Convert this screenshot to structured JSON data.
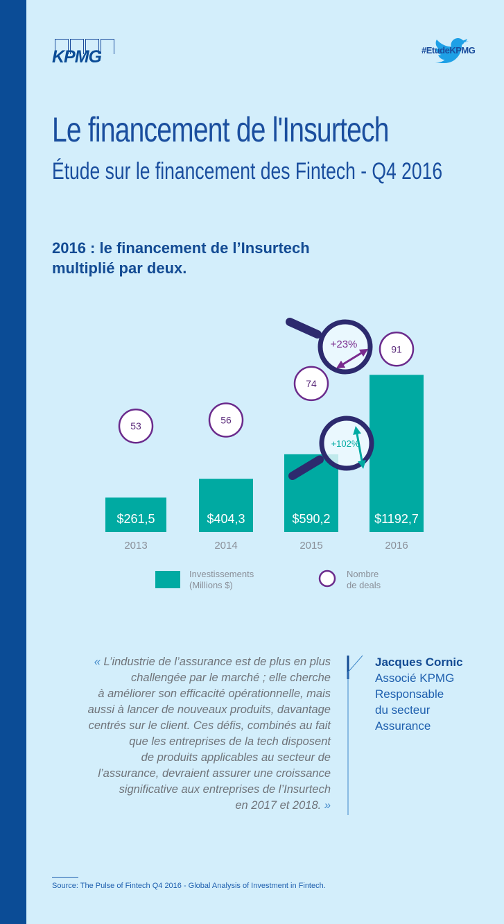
{
  "brand": {
    "logo": "KPMG",
    "hashtag": "#EtudeKPMG",
    "twitter_icon": "twitter-bird-icon"
  },
  "header": {
    "title": "Le financement de l'Insurtech",
    "subtitle": "Étude sur le financement des Fintech - Q4 2016"
  },
  "headline": {
    "line1": "2016 : le financement de l’Insurtech",
    "line2": "multiplié par deux."
  },
  "colors": {
    "strip": "#0b4c96",
    "background": "#d3eefb",
    "bar": "#00aaa2",
    "deal_circle": "#6b2b8c",
    "magnifier": "#2d2a6e"
  },
  "chart_data": {
    "type": "bar",
    "categories": [
      "2013",
      "2014",
      "2015",
      "2016"
    ],
    "series": [
      {
        "name": "Investissements (Millions $)",
        "values": [
          261.5,
          404.3,
          590.2,
          1192.7
        ],
        "labels": [
          "$261,5",
          "$404,3",
          "$590,2",
          "$1192,7"
        ]
      },
      {
        "name": "Nombre de deals",
        "values": [
          53,
          56,
          74,
          91
        ],
        "labels": [
          "53",
          "56",
          "74",
          "91"
        ]
      }
    ],
    "annotations": [
      {
        "text": "+23%",
        "between": [
          "2015",
          "2016"
        ],
        "series": "Nombre de deals"
      },
      {
        "text": "+102%",
        "between": [
          "2015",
          "2016"
        ],
        "series": "Investissements (Millions $)"
      }
    ],
    "legend": {
      "bar_line1": "Investissements",
      "bar_line2": "(Millions $)",
      "circle_line1": "Nombre",
      "circle_line2": "de deals",
      "placement": "bottom"
    }
  },
  "quote": {
    "lines": [
      "« L’industrie de l’assurance est de plus en plus",
      "challengée par le marché ; elle cherche",
      "à améliorer son efficacité opérationnelle, mais",
      "aussi à lancer de nouveaux produits, davantage",
      "centrés sur le client. Ces défis, combinés au fait",
      "que les entreprises de la tech disposent",
      "de produits applicables au secteur de",
      "l’assurance, devraient assurer une croissance",
      "significative aux entreprises de l’Insurtech",
      "en 2017 et 2018. »"
    ]
  },
  "author": {
    "name": "Jacques Cornic",
    "role_lines": [
      "Associé KPMG",
      "Responsable",
      "du secteur",
      "Assurance"
    ]
  },
  "source": "Source: The Pulse of Fintech Q4 2016 - Global Analysis of Investment in Fintech."
}
